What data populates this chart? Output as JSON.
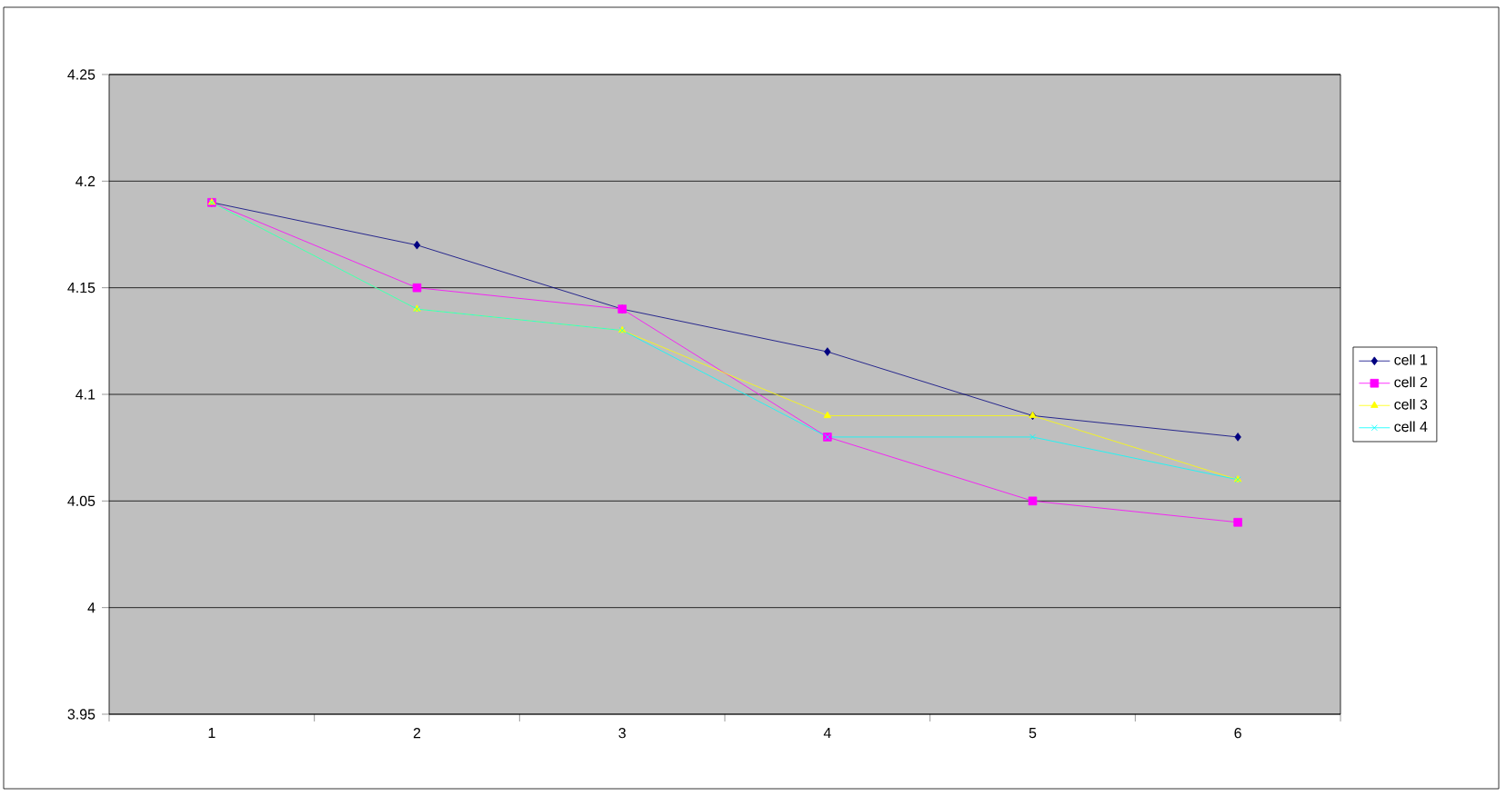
{
  "chart_data": {
    "type": "line",
    "categories": [
      "1",
      "2",
      "3",
      "4",
      "5",
      "6"
    ],
    "series": [
      {
        "name": "cell 1",
        "color": "#000080",
        "marker": "diamond",
        "values": [
          4.19,
          4.17,
          4.14,
          4.12,
          4.09,
          4.08
        ]
      },
      {
        "name": "cell 2",
        "color": "#ff00ff",
        "marker": "square",
        "values": [
          4.19,
          4.15,
          4.14,
          4.08,
          4.05,
          4.04
        ]
      },
      {
        "name": "cell 3",
        "color": "#ffff00",
        "marker": "triangle",
        "values": [
          4.19,
          4.14,
          4.13,
          4.09,
          4.09,
          4.06
        ]
      },
      {
        "name": "cell 4",
        "color": "#00ffff",
        "marker": "cross",
        "values": [
          4.19,
          4.14,
          4.13,
          4.08,
          4.08,
          4.06
        ]
      }
    ],
    "ylim": [
      3.95,
      4.25
    ],
    "yticks": [
      3.95,
      4,
      4.05,
      4.1,
      4.15,
      4.2,
      4.25
    ],
    "grid": "y",
    "legend": "right",
    "line_style": "solid"
  }
}
